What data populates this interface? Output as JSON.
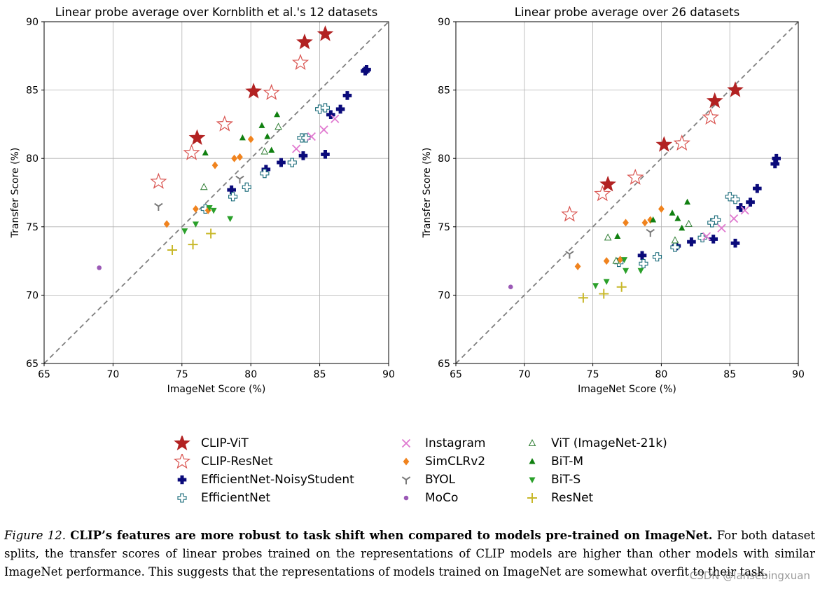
{
  "colors": {
    "CLIP-ViT": "#b22222",
    "CLIP-ResNet": "#d9534f",
    "EfficientNet-NoisyStudent": "#0a0a7a",
    "EfficientNet": "#1a6b7a",
    "Instagram": "#e07ad0",
    "SimCLRv2": "#f0831e",
    "BYOL": "#7a7a7a",
    "MoCo": "#9b59b6",
    "ViT (ImageNet-21k)": "#2e7d32",
    "BiT-M": "#108010",
    "BiT-S": "#2aa02a",
    "ResNet": "#c8b82a",
    "grid": "#b0b0b0",
    "diagonal": "#808080"
  },
  "chart_data": [
    {
      "type": "scatter",
      "title": "Linear probe average over Kornblith et al.'s 12 datasets",
      "xlabel": "ImageNet Score (%)",
      "ylabel": "Transfer Score (%)",
      "xlim": [
        65,
        90
      ],
      "ylim": [
        65,
        90
      ],
      "xticks": [
        65,
        70,
        75,
        80,
        85,
        90
      ],
      "yticks": [
        65,
        70,
        75,
        80,
        85,
        90
      ],
      "grid": true,
      "diagonal": "y = x dashed",
      "series": [
        {
          "name": "CLIP-ViT",
          "marker": "star-filled",
          "x": [
            76.1,
            80.2,
            83.9,
            85.4
          ],
          "y": [
            81.5,
            84.9,
            88.5,
            89.1
          ]
        },
        {
          "name": "CLIP-ResNet",
          "marker": "star-open",
          "x": [
            73.3,
            75.7,
            78.1,
            81.5,
            83.6
          ],
          "y": [
            78.3,
            80.4,
            82.5,
            84.8,
            87.0
          ]
        },
        {
          "name": "EfficientNet-NoisyStudent",
          "marker": "plus-filled",
          "x": [
            78.6,
            81.1,
            82.2,
            83.8,
            85.4,
            85.8,
            86.5,
            87.0,
            88.3,
            88.4
          ],
          "y": [
            77.7,
            79.2,
            79.7,
            80.2,
            80.3,
            83.2,
            83.6,
            84.6,
            86.4,
            86.5
          ]
        },
        {
          "name": "EfficientNet",
          "marker": "plus-open",
          "x": [
            76.7,
            78.7,
            79.7,
            81.0,
            83.0,
            83.7,
            84.0,
            85.0,
            85.4
          ],
          "y": [
            76.3,
            77.2,
            77.9,
            78.9,
            79.7,
            81.5,
            81.5,
            83.6,
            83.7
          ]
        },
        {
          "name": "Instagram",
          "marker": "x",
          "x": [
            83.3,
            84.4,
            85.3,
            86.1
          ],
          "y": [
            80.7,
            81.6,
            82.1,
            82.9
          ]
        },
        {
          "name": "SimCLRv2",
          "marker": "diamond",
          "x": [
            73.9,
            76.0,
            76.9,
            77.4,
            78.8,
            79.2,
            80.0
          ],
          "y": [
            75.2,
            76.3,
            76.2,
            79.5,
            80.0,
            80.1,
            81.4
          ]
        },
        {
          "name": "BYOL",
          "marker": "tri-down",
          "x": [
            73.3,
            79.2
          ],
          "y": [
            76.5,
            78.5
          ]
        },
        {
          "name": "MoCo",
          "marker": "dot",
          "x": [
            69.0
          ],
          "y": [
            72.0
          ]
        },
        {
          "name": "ViT (ImageNet-21k)",
          "marker": "triangle-open",
          "x": [
            76.6,
            81.0,
            82.0
          ],
          "y": [
            77.9,
            80.5,
            82.3
          ]
        },
        {
          "name": "BiT-M",
          "marker": "triangle-filled",
          "x": [
            76.7,
            79.4,
            80.8,
            81.2,
            81.5,
            81.9
          ],
          "y": [
            80.4,
            81.5,
            82.4,
            81.6,
            80.6,
            83.2
          ]
        },
        {
          "name": "BiT-S",
          "marker": "triangle-down",
          "x": [
            75.2,
            76.0,
            77.0,
            77.3,
            78.5
          ],
          "y": [
            74.7,
            75.2,
            76.4,
            76.2,
            75.6
          ]
        },
        {
          "name": "ResNet",
          "marker": "plus-thin",
          "x": [
            74.3,
            75.8,
            77.1
          ],
          "y": [
            73.3,
            73.7,
            74.5
          ]
        }
      ]
    },
    {
      "type": "scatter",
      "title": "Linear probe average over 26 datasets",
      "xlabel": "ImageNet Score (%)",
      "ylabel": "Transfer Score (%)",
      "xlim": [
        65,
        90
      ],
      "ylim": [
        65,
        90
      ],
      "xticks": [
        65,
        70,
        75,
        80,
        85,
        90
      ],
      "yticks": [
        65,
        70,
        75,
        80,
        85,
        90
      ],
      "grid": true,
      "diagonal": "y = x dashed",
      "series": [
        {
          "name": "CLIP-ViT",
          "marker": "star-filled",
          "x": [
            76.1,
            80.2,
            83.9,
            85.4
          ],
          "y": [
            78.1,
            81.0,
            84.2,
            85.0
          ]
        },
        {
          "name": "CLIP-ResNet",
          "marker": "star-open",
          "x": [
            73.3,
            75.7,
            78.1,
            81.5,
            83.6
          ],
          "y": [
            75.9,
            77.4,
            78.6,
            81.1,
            83.0
          ]
        },
        {
          "name": "EfficientNet-NoisyStudent",
          "marker": "plus-filled",
          "x": [
            78.6,
            81.1,
            82.2,
            83.8,
            85.4,
            85.8,
            86.5,
            87.0,
            88.3,
            88.4
          ],
          "y": [
            72.9,
            73.6,
            73.9,
            74.1,
            73.8,
            76.4,
            76.8,
            77.8,
            79.6,
            80.0
          ]
        },
        {
          "name": "EfficientNet",
          "marker": "plus-open",
          "x": [
            76.9,
            78.7,
            79.7,
            81.0,
            83.0,
            83.7,
            84.0,
            85.0,
            85.4
          ],
          "y": [
            72.4,
            72.3,
            72.8,
            73.5,
            74.2,
            75.3,
            75.5,
            77.2,
            77.0
          ]
        },
        {
          "name": "Instagram",
          "marker": "x",
          "x": [
            83.3,
            84.4,
            85.3,
            86.1
          ],
          "y": [
            74.3,
            74.9,
            75.6,
            76.2
          ]
        },
        {
          "name": "SimCLRv2",
          "marker": "diamond",
          "x": [
            73.9,
            76.0,
            77.0,
            77.4,
            78.8,
            79.2,
            80.0
          ],
          "y": [
            72.1,
            72.5,
            72.6,
            75.3,
            75.3,
            75.5,
            76.3
          ]
        },
        {
          "name": "BYOL",
          "marker": "tri-down",
          "x": [
            73.3,
            79.2
          ],
          "y": [
            73.0,
            74.6
          ]
        },
        {
          "name": "MoCo",
          "marker": "dot",
          "x": [
            69.0
          ],
          "y": [
            70.6
          ]
        },
        {
          "name": "ViT (ImageNet-21k)",
          "marker": "triangle-open",
          "x": [
            76.1,
            76.7,
            81.0,
            82.0
          ],
          "y": [
            74.2,
            72.5,
            74.0,
            75.2
          ]
        },
        {
          "name": "BiT-M",
          "marker": "triangle-filled",
          "x": [
            76.8,
            79.4,
            80.8,
            81.2,
            81.5,
            81.9
          ],
          "y": [
            74.3,
            75.5,
            76.0,
            75.6,
            74.9,
            76.8
          ]
        },
        {
          "name": "BiT-S",
          "marker": "triangle-down",
          "x": [
            75.2,
            76.0,
            77.3,
            77.4,
            78.5
          ],
          "y": [
            70.7,
            71.0,
            72.6,
            71.8,
            71.8
          ]
        },
        {
          "name": "ResNet",
          "marker": "plus-thin",
          "x": [
            74.3,
            75.8,
            77.1
          ],
          "y": [
            69.8,
            70.1,
            70.6
          ]
        }
      ]
    }
  ],
  "legend": {
    "columns": [
      [
        {
          "name": "CLIP-ViT",
          "marker": "star-filled"
        },
        {
          "name": "CLIP-ResNet",
          "marker": "star-open"
        },
        {
          "name": "EfficientNet-NoisyStudent",
          "marker": "plus-filled"
        },
        {
          "name": "EfficientNet",
          "marker": "plus-open"
        }
      ],
      [
        {
          "name": "Instagram",
          "marker": "x"
        },
        {
          "name": "SimCLRv2",
          "marker": "diamond"
        },
        {
          "name": "BYOL",
          "marker": "tri-down"
        },
        {
          "name": "MoCo",
          "marker": "dot"
        }
      ],
      [
        {
          "name": "ViT (ImageNet-21k)",
          "marker": "triangle-open"
        },
        {
          "name": "BiT-M",
          "marker": "triangle-filled"
        },
        {
          "name": "BiT-S",
          "marker": "triangle-down"
        },
        {
          "name": "ResNet",
          "marker": "plus-thin"
        }
      ]
    ]
  },
  "caption": {
    "figure_label": "Figure 12.",
    "bold_text": "CLIP’s features are more robust to task shift when compared to models pre-trained on ImageNet.",
    "body_text": "For both dataset splits, the transfer scores of linear probes trained on the representations of CLIP models are higher than other models with similar ImageNet performance. This suggests that the representations of models trained on ImageNet are somewhat overfit to their task."
  },
  "watermark": "CSDN @lansebingxuan"
}
